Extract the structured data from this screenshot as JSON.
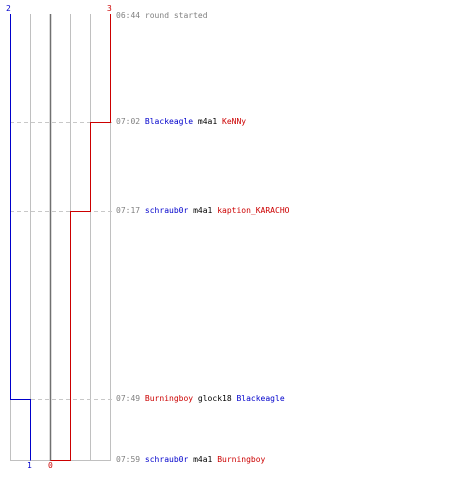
{
  "scores": {
    "top_left": "2",
    "top_right": "3",
    "bottom_left": "1",
    "bottom_right": "0"
  },
  "events": [
    {
      "time": "06:44",
      "text": "round started"
    },
    {
      "time": "07:02",
      "killer": "Blackeagle",
      "weapon": "m4a1",
      "victim": "KeNNy",
      "killer_team": "blue",
      "victim_team": "red"
    },
    {
      "time": "07:17",
      "killer": "schraub0r",
      "weapon": "m4a1",
      "victim": "kaption_KARACHO",
      "killer_team": "blue",
      "victim_team": "red"
    },
    {
      "time": "07:49",
      "killer": "Burningboy",
      "weapon": "glock18",
      "victim": "Blackeagle",
      "killer_team": "red",
      "victim_team": "blue"
    },
    {
      "time": "07:59",
      "killer": "schraub0r",
      "weapon": "m4a1",
      "victim": "Burningboy",
      "killer_team": "blue",
      "victim_team": "red"
    }
  ],
  "colors": {
    "blue_team": "#0000cc",
    "red_team": "#cc0000",
    "grid": "#c0c0c0",
    "center": "#808080",
    "dashed": "#c8c8c8"
  }
}
